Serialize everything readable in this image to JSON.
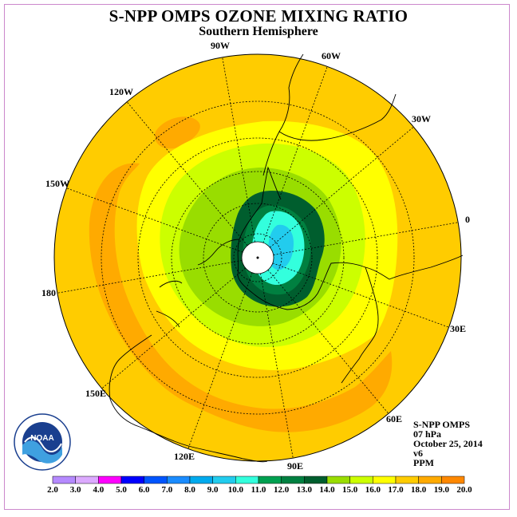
{
  "title": "S-NPP OMPS OZONE MIXING RATIO",
  "subtitle": "Southern Hemisphere",
  "longitude_labels": [
    "90W",
    "60W",
    "30W",
    "0",
    "30E",
    "60E",
    "90E",
    "120E",
    "150E",
    "180",
    "150W",
    "120W"
  ],
  "info": {
    "line1": "S-NPP OMPS",
    "line2": "07 hPa",
    "line3": "October 25, 2014",
    "line4": "v6",
    "line5": "PPM"
  },
  "logo": {
    "icon": "noaa-logo",
    "text": "NOAA"
  },
  "colorbar": {
    "labels": [
      "2.0",
      "3.0",
      "4.0",
      "5.0",
      "6.0",
      "7.0",
      "8.0",
      "9.0",
      "10.0",
      "11.0",
      "12.0",
      "13.0",
      "14.0",
      "15.0",
      "16.0",
      "17.0",
      "18.0",
      "19.0",
      "20.0"
    ],
    "colors": [
      "#b58aff",
      "#dcaaff",
      "#ff00ff",
      "#0000ff",
      "#0055ff",
      "#1a8cff",
      "#00aaee",
      "#22ccee",
      "#33ffdd",
      "#00a050",
      "#008040",
      "#005e2e",
      "#99dd00",
      "#ccff00",
      "#ffff00",
      "#ffcc00",
      "#ffaa00",
      "#ff8800",
      "#ff4400",
      "#ff0000",
      "#8b5a3c"
    ]
  },
  "colors": {
    "background_orange": "#ffcc00",
    "band_darker_orange": "#ffaa00",
    "band_yellow": "#ffff00",
    "band_lime": "#ccff00",
    "band_light_green": "#99dd00",
    "band_dark_green": "#005e2e",
    "band_green": "#008040",
    "band_cyan": "#33ffdd",
    "band_light_blue": "#22ccee"
  }
}
